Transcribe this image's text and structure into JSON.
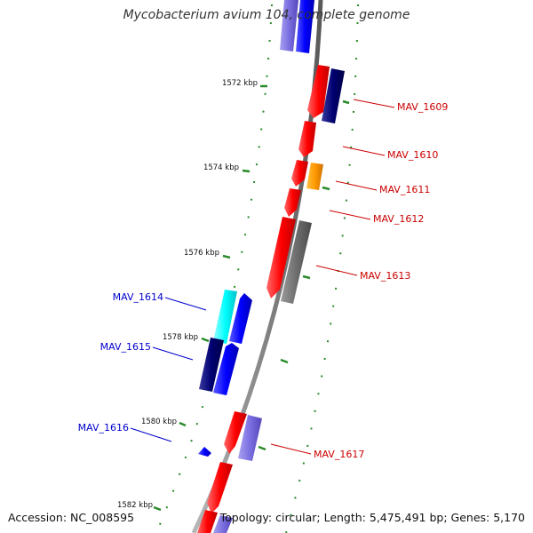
{
  "title": "Mycobacterium avium 104, complete genome",
  "footer": {
    "accession": "Accession: NC_008595",
    "summary": "Topology: circular; Length: 5,475,491 bp; Genes: 5,170"
  },
  "colors": {
    "backbone": "#8c8c8c",
    "forward_label": "#cc0000",
    "reverse_label": "#0000cc",
    "tick": "#2a8a2a"
  },
  "ticks": [
    {
      "label": "1572 kbp"
    },
    {
      "label": "1574 kbp"
    },
    {
      "label": "1576 kbp"
    },
    {
      "label": "1578 kbp"
    },
    {
      "label": "1580 kbp"
    },
    {
      "label": "1582 kbp"
    }
  ],
  "gene_labels": [
    {
      "label": "MAV_1609",
      "strand": "forward"
    },
    {
      "label": "MAV_1610",
      "strand": "forward"
    },
    {
      "label": "MAV_1611",
      "strand": "forward"
    },
    {
      "label": "MAV_1612",
      "strand": "forward"
    },
    {
      "label": "MAV_1613",
      "strand": "forward"
    },
    {
      "label": "MAV_1614",
      "strand": "reverse"
    },
    {
      "label": "MAV_1615",
      "strand": "reverse"
    },
    {
      "label": "MAV_1616",
      "strand": "reverse"
    },
    {
      "label": "MAV_1617",
      "strand": "forward"
    }
  ]
}
